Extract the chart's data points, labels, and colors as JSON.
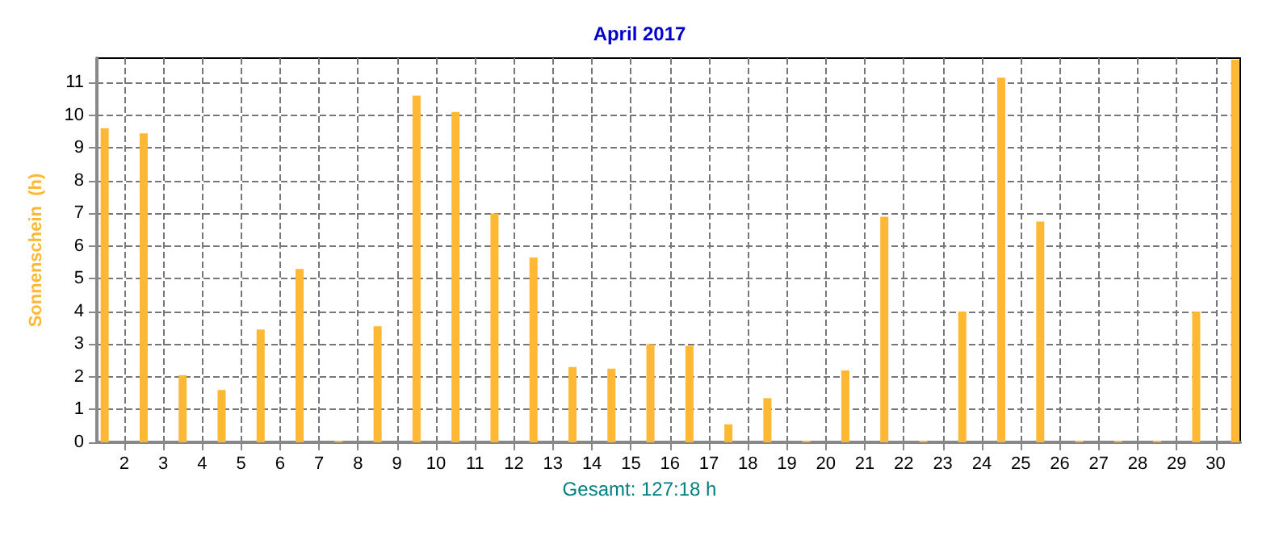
{
  "chart_data": {
    "type": "bar",
    "title": "April 2017",
    "ylabel": "Sonnenschein  (h)",
    "annotations": [
      "Gesamt: 127:18 h"
    ],
    "x": [
      1.5,
      2.5,
      3.5,
      4.5,
      5.5,
      6.5,
      7.5,
      8.5,
      9.5,
      10.5,
      11.5,
      12.5,
      13.5,
      14.5,
      15.5,
      16.5,
      17.5,
      18.5,
      19.5,
      20.5,
      21.5,
      22.5,
      23.5,
      24.5,
      25.5,
      26.5,
      27.5,
      28.5,
      29.5,
      30.5
    ],
    "values": [
      9.6,
      9.45,
      2.05,
      1.6,
      3.45,
      5.3,
      0.05,
      3.55,
      10.6,
      10.1,
      7.0,
      5.65,
      2.3,
      2.25,
      3.0,
      2.95,
      0.55,
      1.35,
      0.05,
      2.2,
      6.9,
      0.05,
      4.0,
      11.15,
      6.75,
      0.05,
      0.05,
      0.05,
      4.0,
      11.7
    ],
    "color": "#ffb833",
    "xlim": [
      1.3,
      30.63
    ],
    "xticks": [
      2,
      3,
      4,
      5,
      6,
      7,
      8,
      9,
      10,
      11,
      12,
      13,
      14,
      15,
      16,
      17,
      18,
      19,
      20,
      21,
      22,
      23,
      24,
      25,
      26,
      27,
      28,
      29,
      30
    ],
    "ylim": [
      0,
      11.75
    ],
    "yticks": [
      0,
      1,
      2,
      3,
      4,
      5,
      6,
      7,
      8,
      9,
      10,
      11
    ],
    "grid": true
  }
}
